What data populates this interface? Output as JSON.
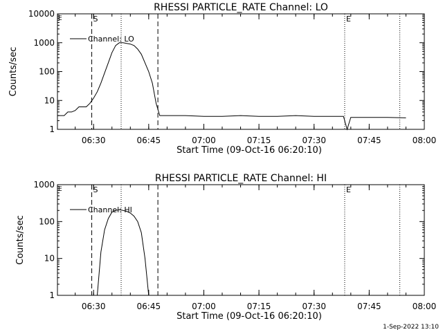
{
  "footer_stamp": "1-Sep-2022 13:10",
  "chart_data": [
    {
      "type": "line",
      "title": "RHESSI PARTICLE_RATE Channel: LO",
      "xlabel": "Start Time (09-Oct-16 06:20:10)",
      "ylabel": "Counts/sec",
      "y_scale": "log",
      "ylim": [
        1,
        10000
      ],
      "y_ticks": [
        1,
        10,
        100,
        1000,
        10000
      ],
      "y_tick_labels": [
        "1",
        "10",
        "100",
        "1000",
        "10000"
      ],
      "xlim": [
        "06:20:10",
        "08:00"
      ],
      "x_ticks": [
        "06:30",
        "06:45",
        "07:00",
        "07:15",
        "07:30",
        "07:45",
        "08:00"
      ],
      "legend_position": "top-left",
      "series": [
        {
          "name": "Channel: LO",
          "x": [
            "06:20:10",
            "06:21",
            "06:22",
            "06:23",
            "06:24",
            "06:25",
            "06:26",
            "06:27",
            "06:28",
            "06:29",
            "06:30",
            "06:31",
            "06:32",
            "06:33",
            "06:34",
            "06:35",
            "06:36",
            "06:37",
            "06:38",
            "06:39",
            "06:40",
            "06:41",
            "06:42",
            "06:43",
            "06:44",
            "06:45",
            "06:46",
            "06:47",
            "06:48",
            "06:50",
            "06:55",
            "07:00",
            "07:05",
            "07:10",
            "07:15",
            "07:20",
            "07:25",
            "07:30",
            "07:35",
            "07:38",
            "07:39",
            "07:40",
            "07:45",
            "07:50",
            "07:55"
          ],
          "values": [
            3,
            3,
            3,
            4,
            4,
            4.5,
            6,
            6,
            6,
            8,
            12,
            20,
            40,
            90,
            200,
            450,
            800,
            1000,
            1000,
            950,
            900,
            800,
            600,
            400,
            200,
            100,
            40,
            8,
            3,
            3,
            3,
            2.8,
            2.8,
            3,
            2.8,
            2.8,
            3,
            2.8,
            2.8,
            2.8,
            1,
            2.6,
            2.6,
            2.6,
            2.5
          ]
        }
      ],
      "annotations": [
        {
          "label": "S",
          "time": "06:29:30",
          "style": "dashed"
        },
        {
          "label": "",
          "time": "06:37:30",
          "style": "dotted"
        },
        {
          "label": "",
          "time": "06:47:30",
          "style": "dashed"
        },
        {
          "label": "E",
          "time": "07:38:20",
          "style": "dotted"
        },
        {
          "label": "",
          "time": "07:53:20",
          "style": "dotted"
        }
      ]
    },
    {
      "type": "line",
      "title": "RHESSI PARTICLE_RATE Channel: HI",
      "xlabel": "Start Time (09-Oct-16 06:20:10)",
      "ylabel": "Counts/sec",
      "y_scale": "log",
      "ylim": [
        1,
        1000
      ],
      "y_ticks": [
        1,
        10,
        100,
        1000
      ],
      "y_tick_labels": [
        "1",
        "10",
        "100",
        "1000"
      ],
      "xlim": [
        "06:20:10",
        "08:00"
      ],
      "x_ticks": [
        "06:30",
        "06:45",
        "07:00",
        "07:15",
        "07:30",
        "07:45",
        "08:00"
      ],
      "legend_position": "top-left",
      "series": [
        {
          "name": "Channel: HI",
          "x": [
            "06:31",
            "06:32",
            "06:33",
            "06:34",
            "06:35",
            "06:36",
            "06:37",
            "06:38",
            "06:39",
            "06:40",
            "06:41",
            "06:42",
            "06:43",
            "06:44",
            "06:45"
          ],
          "values": [
            1,
            15,
            60,
            120,
            180,
            200,
            210,
            200,
            190,
            170,
            140,
            100,
            50,
            10,
            1
          ]
        }
      ],
      "annotations": [
        {
          "label": "S",
          "time": "06:29:30",
          "style": "dashed"
        },
        {
          "label": "",
          "time": "06:37:30",
          "style": "dotted"
        },
        {
          "label": "",
          "time": "06:47:30",
          "style": "dashed"
        },
        {
          "label": "E",
          "time": "07:38:20",
          "style": "dotted"
        },
        {
          "label": "",
          "time": "07:53:20",
          "style": "dotted"
        }
      ]
    }
  ]
}
